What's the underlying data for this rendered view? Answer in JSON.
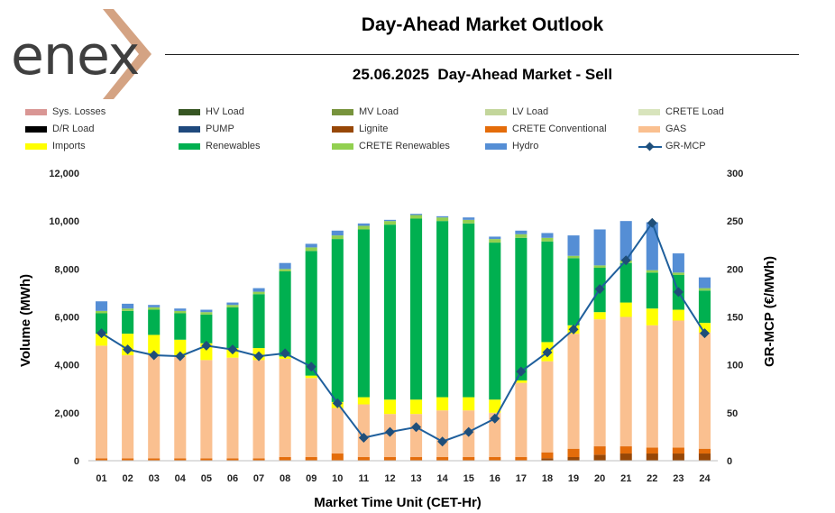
{
  "brand": {
    "logo_text": "enex",
    "logo_accent_color": "#d4a383",
    "logo_text_color": "#3f3f3f"
  },
  "header": {
    "title": "Day-Ahead Market Outlook",
    "subtitle": "25.06.2025  Day-Ahead Market - Sell"
  },
  "legend": [
    {
      "label": "Sys. Losses",
      "color": "#d99694",
      "kind": "bar"
    },
    {
      "label": "HV Load",
      "color": "#375623",
      "kind": "bar"
    },
    {
      "label": "MV Load",
      "color": "#77933c",
      "kind": "bar"
    },
    {
      "label": "LV Load",
      "color": "#c3d69b",
      "kind": "bar"
    },
    {
      "label": "CRETE Load",
      "color": "#d8e4bc",
      "kind": "bar"
    },
    {
      "label": "D/R Load",
      "color": "#000000",
      "kind": "bar"
    },
    {
      "label": "PUMP",
      "color": "#1f497d",
      "kind": "bar"
    },
    {
      "label": "Lignite",
      "color": "#974706",
      "kind": "bar"
    },
    {
      "label": "CRETE Conventional",
      "color": "#e46c0a",
      "kind": "bar"
    },
    {
      "label": "GAS",
      "color": "#fac090",
      "kind": "bar"
    },
    {
      "label": "Imports",
      "color": "#ffff00",
      "kind": "bar"
    },
    {
      "label": "Renewables",
      "color": "#00b050",
      "kind": "bar"
    },
    {
      "label": "CRETE Renewables",
      "color": "#92d050",
      "kind": "bar"
    },
    {
      "label": "Hydro",
      "color": "#558ed5",
      "kind": "bar"
    },
    {
      "label": "GR-MCP",
      "color": "#1f4e79",
      "kind": "line"
    }
  ],
  "chart_data": {
    "type": "bar",
    "stacked": true,
    "xlabel": "Market Time Unit (CET-Hr)",
    "ylabel": "Volume (MWh)",
    "y2label": "GR-MCP (€/MWh)",
    "ylim": [
      0,
      12000
    ],
    "y2lim": [
      0,
      300
    ],
    "yticks": [
      "0",
      "2,000",
      "4,000",
      "6,000",
      "8,000",
      "10,000",
      "12,000"
    ],
    "y2ticks": [
      "0",
      "50",
      "100",
      "150",
      "200",
      "250",
      "300"
    ],
    "categories": [
      "01",
      "02",
      "03",
      "04",
      "05",
      "06",
      "07",
      "08",
      "09",
      "10",
      "11",
      "12",
      "13",
      "14",
      "15",
      "16",
      "17",
      "18",
      "19",
      "20",
      "21",
      "22",
      "23",
      "24"
    ],
    "series": [
      {
        "name": "Lignite",
        "color": "#974706",
        "values": [
          0,
          0,
          0,
          0,
          0,
          0,
          0,
          0,
          0,
          0,
          0,
          0,
          0,
          0,
          0,
          0,
          0,
          100,
          150,
          250,
          300,
          300,
          300,
          300
        ]
      },
      {
        "name": "CRETE Conventional",
        "color": "#e46c0a",
        "values": [
          100,
          100,
          100,
          100,
          100,
          100,
          100,
          150,
          150,
          300,
          150,
          150,
          150,
          150,
          150,
          150,
          150,
          250,
          350,
          350,
          300,
          250,
          250,
          200
        ]
      },
      {
        "name": "GAS",
        "color": "#fac090",
        "values": [
          4700,
          4300,
          4350,
          4250,
          4100,
          4200,
          4100,
          4100,
          3300,
          1900,
          2200,
          1800,
          1800,
          1950,
          1950,
          1850,
          3100,
          3800,
          4800,
          5300,
          5400,
          5100,
          5300,
          4850
        ]
      },
      {
        "name": "Imports",
        "color": "#ffff00",
        "values": [
          500,
          900,
          800,
          700,
          700,
          400,
          500,
          100,
          100,
          250,
          300,
          600,
          600,
          550,
          550,
          550,
          100,
          800,
          350,
          300,
          600,
          700,
          450,
          400
        ]
      },
      {
        "name": "Renewables",
        "color": "#00b050",
        "values": [
          850,
          950,
          1050,
          1100,
          1200,
          1700,
          2250,
          3550,
          5200,
          6800,
          7000,
          7300,
          7550,
          7350,
          7250,
          6550,
          5950,
          4200,
          2800,
          1850,
          1650,
          1500,
          1450,
          1350
        ]
      },
      {
        "name": "CRETE Renewables",
        "color": "#92d050",
        "values": [
          100,
          100,
          100,
          100,
          100,
          100,
          100,
          100,
          150,
          150,
          150,
          150,
          150,
          150,
          150,
          150,
          150,
          150,
          100,
          100,
          100,
          100,
          100,
          100
        ]
      },
      {
        "name": "Hydro",
        "color": "#558ed5",
        "values": [
          400,
          200,
          100,
          100,
          100,
          100,
          150,
          250,
          150,
          200,
          100,
          50,
          50,
          50,
          100,
          100,
          150,
          200,
          850,
          1500,
          1650,
          2000,
          800,
          450
        ]
      }
    ],
    "line": {
      "name": "GR-MCP",
      "color": "#1f5f9c",
      "marker_color": "#1f4e79",
      "values": [
        133,
        116,
        110,
        109,
        120,
        116,
        109,
        112,
        98,
        60,
        24,
        30,
        35,
        20,
        30,
        44,
        93,
        113,
        137,
        179,
        209,
        248,
        176,
        133
      ]
    }
  }
}
